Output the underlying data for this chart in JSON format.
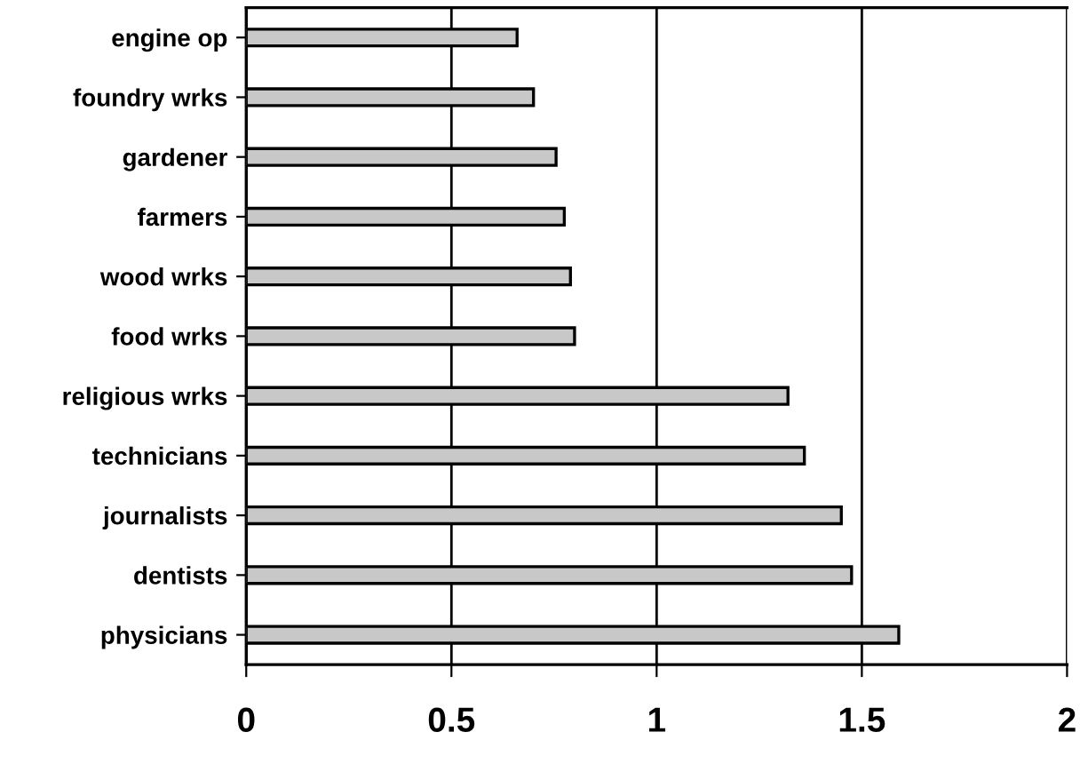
{
  "chart_data": {
    "type": "bar",
    "orientation": "horizontal",
    "categories": [
      "engine op",
      "foundry wrks",
      "gardener",
      "farmers",
      "wood wrks",
      "food wrks",
      "religious wrks",
      "technicians",
      "journalists",
      "dentists",
      "physicians"
    ],
    "values": [
      0.66,
      0.7,
      0.755,
      0.775,
      0.79,
      0.8,
      1.32,
      1.36,
      1.45,
      1.475,
      1.59
    ],
    "color": "#c8c8c8",
    "xlim": [
      0,
      2
    ],
    "xticks": [
      0,
      0.5,
      1,
      1.5,
      2
    ],
    "grid": "x",
    "legend": false
  }
}
